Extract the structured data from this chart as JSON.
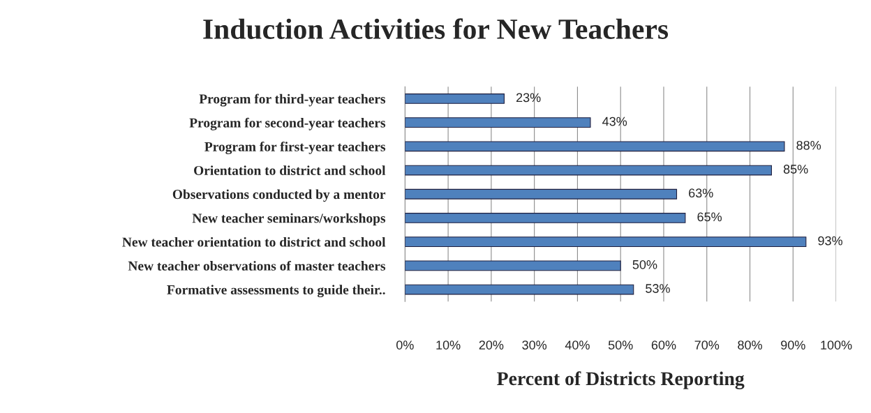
{
  "chart_data": {
    "type": "bar",
    "orientation": "horizontal",
    "title": "Induction Activities for New Teachers",
    "xlabel": "Percent of Districts Reporting",
    "categories": [
      "Program for third-year teachers",
      "Program for second-year teachers",
      "Program for first-year teachers",
      "Orientation to district and school",
      "Observations conducted by a mentor",
      "New teacher seminars/workshops",
      "New teacher orientation to district and school",
      "New teacher observations of master teachers",
      "Formative assessments to guide their.."
    ],
    "values": [
      23,
      43,
      88,
      85,
      63,
      65,
      93,
      50,
      53
    ],
    "value_labels": [
      "23%",
      "43%",
      "88%",
      "85%",
      "63%",
      "65%",
      "93%",
      "50%",
      "53%"
    ],
    "color": "#4f81bd",
    "xlim": [
      0,
      100
    ],
    "xticks": [
      {
        "value": 0,
        "label": "0%"
      },
      {
        "value": 10,
        "label": "10%"
      },
      {
        "value": 20,
        "label": "20%"
      },
      {
        "value": 30,
        "label": "30%"
      },
      {
        "value": 40,
        "label": "40%"
      },
      {
        "value": 50,
        "label": "50%"
      },
      {
        "value": 60,
        "label": "60%"
      },
      {
        "value": 70,
        "label": "70%"
      },
      {
        "value": 80,
        "label": "80%"
      },
      {
        "value": 90,
        "label": "90%"
      },
      {
        "value": 100,
        "label": "100%"
      }
    ],
    "grid": "x",
    "legend": false
  }
}
